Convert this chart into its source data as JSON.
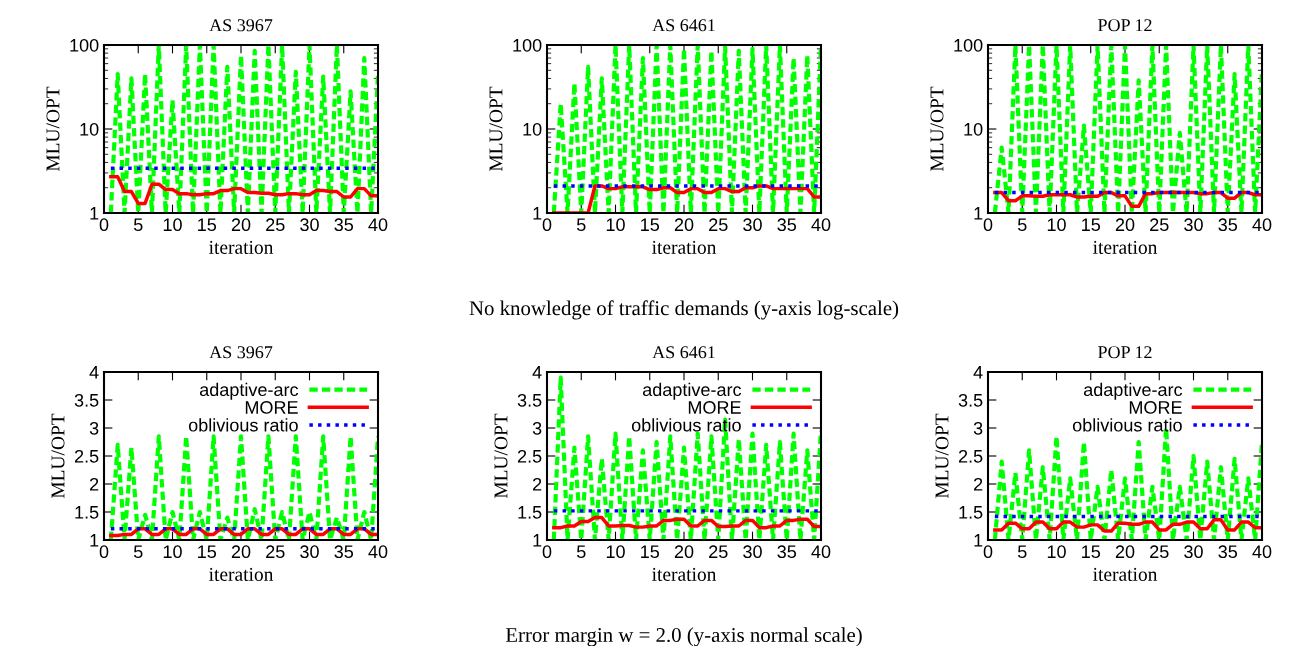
{
  "chart_data": [
    {
      "type": "line",
      "title": "AS 3967",
      "xlabel": "iteration",
      "ylabel": "MLU/OPT",
      "log": "y",
      "xlim": [
        0,
        40
      ],
      "xticks": [
        0,
        5,
        10,
        15,
        20,
        25,
        30,
        35,
        40
      ],
      "ylim": [
        1,
        100
      ],
      "yticks": [
        1,
        10,
        100
      ],
      "grid": false,
      "legend": false,
      "x": [
        1,
        2,
        3,
        4,
        5,
        6,
        7,
        8,
        9,
        10,
        11,
        12,
        13,
        14,
        15,
        16,
        17,
        18,
        19,
        20,
        21,
        22,
        23,
        24,
        25,
        26,
        27,
        28,
        29,
        30,
        31,
        32,
        33,
        34,
        35,
        36,
        37,
        38,
        39,
        40
      ],
      "series": [
        {
          "color": "#00ff00",
          "line_style": "dashed",
          "values": [
            1,
            45,
            1,
            40,
            1,
            45,
            1,
            100,
            1,
            22,
            1,
            100,
            1,
            100,
            1,
            100,
            1,
            55,
            1,
            75,
            1,
            85,
            1,
            100,
            1,
            100,
            1,
            48,
            1,
            100,
            1,
            42,
            1,
            100,
            1,
            28,
            1,
            70,
            1,
            45
          ]
        },
        {
          "color": "#ff0000",
          "line_style": "solid",
          "values": [
            2.7,
            2.7,
            1.8,
            1.8,
            1.3,
            1.3,
            2.2,
            2.2,
            1.9,
            1.9,
            1.7,
            1.7,
            1.65,
            1.65,
            1.7,
            1.7,
            1.85,
            1.85,
            1.95,
            1.95,
            1.75,
            1.75,
            1.72,
            1.72,
            1.65,
            1.65,
            1.7,
            1.7,
            1.65,
            1.65,
            1.85,
            1.85,
            1.8,
            1.8,
            1.55,
            1.55,
            1.95,
            1.95,
            1.6,
            1.6
          ]
        },
        {
          "color": "#0000ff",
          "line_style": "dotted",
          "values": [
            3.4,
            3.4,
            3.4,
            3.4,
            3.4,
            3.4,
            3.4,
            3.4,
            3.4,
            3.4,
            3.4,
            3.4,
            3.4,
            3.4,
            3.4,
            3.4,
            3.4,
            3.4,
            3.4,
            3.4,
            3.4,
            3.4,
            3.4,
            3.4,
            3.4,
            3.4,
            3.4,
            3.4,
            3.4,
            3.4,
            3.4,
            3.4,
            3.4,
            3.4,
            3.4,
            3.4,
            3.4,
            3.4,
            3.4,
            3.4
          ]
        }
      ]
    },
    {
      "type": "line",
      "title": "AS 6461",
      "xlabel": "iteration",
      "ylabel": "MLU/OPT",
      "log": "y",
      "xlim": [
        0,
        40
      ],
      "xticks": [
        0,
        5,
        10,
        15,
        20,
        25,
        30,
        35,
        40
      ],
      "ylim": [
        1,
        100
      ],
      "yticks": [
        1,
        10,
        100
      ],
      "grid": false,
      "legend": false,
      "annotations": [
        "No knowledge of traffic demands (y-axis log-scale)"
      ],
      "x": [
        1,
        2,
        3,
        4,
        5,
        6,
        7,
        8,
        9,
        10,
        11,
        12,
        13,
        14,
        15,
        16,
        17,
        18,
        19,
        20,
        21,
        22,
        23,
        24,
        25,
        26,
        27,
        28,
        29,
        30,
        31,
        32,
        33,
        34,
        35,
        36,
        37,
        38,
        39,
        40
      ],
      "series": [
        {
          "color": "#00ff00",
          "line_style": "dashed",
          "values": [
            1,
            20,
            1,
            35,
            1,
            55,
            1,
            40,
            1,
            100,
            1,
            100,
            1,
            70,
            1,
            100,
            1,
            100,
            1,
            90,
            1,
            100,
            1,
            85,
            1,
            95,
            1,
            85,
            1,
            90,
            1,
            100,
            1,
            100,
            1,
            70,
            1,
            75,
            1,
            100
          ]
        },
        {
          "color": "#ff0000",
          "line_style": "solid",
          "values": [
            1,
            1,
            1,
            1,
            1,
            1,
            2.1,
            2.1,
            1.95,
            1.95,
            2.05,
            2.05,
            2.05,
            2.05,
            1.9,
            1.9,
            2.0,
            2.0,
            1.75,
            1.75,
            1.95,
            1.95,
            1.75,
            1.75,
            1.95,
            1.95,
            1.8,
            1.8,
            2.0,
            2.0,
            2.1,
            2.1,
            1.95,
            1.95,
            1.95,
            1.95,
            1.95,
            1.95,
            1.55,
            1.55
          ]
        },
        {
          "color": "#0000ff",
          "line_style": "dotted",
          "values": [
            2.1,
            2.1,
            2.1,
            2.1,
            2.1,
            2.1,
            2.1,
            2.1,
            2.1,
            2.1,
            2.1,
            2.1,
            2.1,
            2.1,
            2.1,
            2.1,
            2.1,
            2.1,
            2.1,
            2.1,
            2.1,
            2.1,
            2.1,
            2.1,
            2.1,
            2.1,
            2.1,
            2.1,
            2.1,
            2.1,
            2.1,
            2.1,
            2.1,
            2.1,
            2.1,
            2.1,
            2.1,
            2.1,
            2.1,
            2.1
          ]
        }
      ]
    },
    {
      "type": "line",
      "title": "POP 12",
      "xlabel": "iteration",
      "ylabel": "MLU/OPT",
      "log": "y",
      "xlim": [
        0,
        40
      ],
      "xticks": [
        0,
        5,
        10,
        15,
        20,
        25,
        30,
        35,
        40
      ],
      "ylim": [
        1,
        100
      ],
      "yticks": [
        1,
        10,
        100
      ],
      "grid": false,
      "legend": false,
      "x": [
        1,
        2,
        3,
        4,
        5,
        6,
        7,
        8,
        9,
        10,
        11,
        12,
        13,
        14,
        15,
        16,
        17,
        18,
        19,
        20,
        21,
        22,
        23,
        24,
        25,
        26,
        27,
        28,
        29,
        30,
        31,
        32,
        33,
        34,
        35,
        36,
        37,
        38,
        39,
        40
      ],
      "series": [
        {
          "color": "#00ff00",
          "line_style": "dashed",
          "values": [
            1,
            6,
            1,
            100,
            1,
            100,
            1,
            100,
            1,
            100,
            1,
            100,
            1,
            11,
            1,
            100,
            1,
            100,
            1,
            100,
            1,
            38,
            1,
            100,
            1,
            100,
            1,
            9,
            1,
            100,
            1,
            100,
            1,
            100,
            1,
            45,
            1,
            100,
            1,
            50
          ]
        },
        {
          "color": "#ff0000",
          "line_style": "solid",
          "values": [
            1.75,
            1.75,
            1.4,
            1.4,
            1.6,
            1.6,
            1.58,
            1.58,
            1.65,
            1.65,
            1.65,
            1.65,
            1.55,
            1.55,
            1.58,
            1.58,
            1.75,
            1.75,
            1.6,
            1.6,
            1.2,
            1.2,
            1.7,
            1.7,
            1.75,
            1.75,
            1.75,
            1.75,
            1.75,
            1.75,
            1.7,
            1.7,
            1.75,
            1.75,
            1.5,
            1.5,
            1.75,
            1.75,
            1.65,
            1.65
          ]
        },
        {
          "color": "#0000ff",
          "line_style": "dotted",
          "values": [
            1.75,
            1.75,
            1.75,
            1.75,
            1.75,
            1.75,
            1.75,
            1.75,
            1.75,
            1.75,
            1.75,
            1.75,
            1.75,
            1.75,
            1.75,
            1.75,
            1.75,
            1.75,
            1.75,
            1.75,
            1.75,
            1.75,
            1.75,
            1.75,
            1.75,
            1.75,
            1.75,
            1.75,
            1.75,
            1.75,
            1.75,
            1.75,
            1.75,
            1.75,
            1.75,
            1.75,
            1.75,
            1.75,
            1.75,
            1.75
          ]
        }
      ]
    },
    {
      "type": "line",
      "title": "AS 3967",
      "xlabel": "iteration",
      "ylabel": "MLU/OPT",
      "xlim": [
        0,
        40
      ],
      "xticks": [
        0,
        5,
        10,
        15,
        20,
        25,
        30,
        35,
        40
      ],
      "ylim": [
        1,
        4
      ],
      "yticks": [
        1,
        1.5,
        2,
        2.5,
        3,
        3.5,
        4
      ],
      "grid": false,
      "legend": "top right",
      "x": [
        1,
        2,
        3,
        4,
        5,
        6,
        7,
        8,
        9,
        10,
        11,
        12,
        13,
        14,
        15,
        16,
        17,
        18,
        19,
        20,
        21,
        22,
        23,
        24,
        25,
        26,
        27,
        28,
        29,
        30,
        31,
        32,
        33,
        34,
        35,
        36,
        37,
        38,
        39,
        40
      ],
      "series": [
        {
          "name": "adaptive-arc",
          "color": "#00ff00",
          "line_style": "dashed",
          "values": [
            1,
            2.7,
            1,
            2.65,
            1,
            1.45,
            1,
            2.85,
            1,
            1.5,
            1,
            2.85,
            1,
            1.5,
            1,
            2.85,
            1,
            1.4,
            1,
            2.85,
            1,
            1.55,
            1,
            2.85,
            1,
            1.5,
            1,
            2.85,
            1,
            1.5,
            1,
            2.85,
            1,
            1.4,
            1,
            2.85,
            1,
            1.5,
            1,
            2.85
          ]
        },
        {
          "name": "MORE",
          "color": "#ff0000",
          "line_style": "solid",
          "values": [
            1.08,
            1.08,
            1.1,
            1.1,
            1.2,
            1.2,
            1.1,
            1.1,
            1.2,
            1.2,
            1.1,
            1.1,
            1.2,
            1.2,
            1.1,
            1.1,
            1.2,
            1.2,
            1.1,
            1.1,
            1.2,
            1.2,
            1.1,
            1.1,
            1.2,
            1.2,
            1.1,
            1.1,
            1.2,
            1.2,
            1.1,
            1.1,
            1.2,
            1.2,
            1.1,
            1.1,
            1.2,
            1.2,
            1.1,
            1.1
          ]
        },
        {
          "name": "oblivious ratio",
          "color": "#0000ff",
          "line_style": "dotted",
          "values": [
            1.2,
            1.2,
            1.2,
            1.2,
            1.2,
            1.2,
            1.2,
            1.2,
            1.2,
            1.2,
            1.2,
            1.2,
            1.2,
            1.2,
            1.2,
            1.2,
            1.2,
            1.2,
            1.2,
            1.2,
            1.2,
            1.2,
            1.2,
            1.2,
            1.2,
            1.2,
            1.2,
            1.2,
            1.2,
            1.2,
            1.2,
            1.2,
            1.2,
            1.2,
            1.2,
            1.2,
            1.2,
            1.2,
            1.2,
            1.2
          ]
        }
      ]
    },
    {
      "type": "line",
      "title": "AS 6461",
      "xlabel": "iteration",
      "ylabel": "MLU/OPT",
      "xlim": [
        0,
        40
      ],
      "xticks": [
        0,
        5,
        10,
        15,
        20,
        25,
        30,
        35,
        40
      ],
      "ylim": [
        1,
        4
      ],
      "yticks": [
        1,
        1.5,
        2,
        2.5,
        3,
        3.5,
        4
      ],
      "grid": false,
      "legend": "top right",
      "annotations": [
        "Error margin w = 2.0 (y-axis normal scale)"
      ],
      "x": [
        1,
        2,
        3,
        4,
        5,
        6,
        7,
        8,
        9,
        10,
        11,
        12,
        13,
        14,
        15,
        16,
        17,
        18,
        19,
        20,
        21,
        22,
        23,
        24,
        25,
        26,
        27,
        28,
        29,
        30,
        31,
        32,
        33,
        34,
        35,
        36,
        37,
        38,
        39,
        40
      ],
      "series": [
        {
          "name": "adaptive-arc",
          "color": "#00ff00",
          "line_style": "dashed",
          "values": [
            1,
            3.9,
            1,
            2.65,
            1,
            2.85,
            1,
            2.45,
            1,
            2.9,
            1,
            2.85,
            1,
            2.6,
            1,
            2.75,
            1,
            2.85,
            1,
            2.65,
            1,
            2.9,
            1,
            2.85,
            1,
            3.15,
            1,
            2.8,
            1,
            2.9,
            1,
            2.7,
            1,
            2.75,
            1,
            2.9,
            1,
            2.6,
            1,
            2.95
          ]
        },
        {
          "name": "MORE",
          "color": "#ff0000",
          "line_style": "solid",
          "values": [
            1.22,
            1.22,
            1.25,
            1.25,
            1.33,
            1.33,
            1.4,
            1.4,
            1.25,
            1.25,
            1.26,
            1.26,
            1.23,
            1.23,
            1.25,
            1.25,
            1.35,
            1.35,
            1.37,
            1.37,
            1.25,
            1.25,
            1.35,
            1.35,
            1.24,
            1.24,
            1.25,
            1.25,
            1.35,
            1.35,
            1.22,
            1.22,
            1.25,
            1.25,
            1.35,
            1.35,
            1.37,
            1.37,
            1.24,
            1.24
          ]
        },
        {
          "name": "oblivious ratio",
          "color": "#0000ff",
          "line_style": "dotted",
          "values": [
            1.52,
            1.52,
            1.52,
            1.52,
            1.52,
            1.52,
            1.52,
            1.52,
            1.52,
            1.52,
            1.52,
            1.52,
            1.52,
            1.52,
            1.52,
            1.52,
            1.52,
            1.52,
            1.52,
            1.52,
            1.52,
            1.52,
            1.52,
            1.52,
            1.52,
            1.52,
            1.52,
            1.52,
            1.52,
            1.52,
            1.52,
            1.52,
            1.52,
            1.52,
            1.52,
            1.52,
            1.52,
            1.52,
            1.52,
            1.52
          ]
        }
      ]
    },
    {
      "type": "line",
      "title": "POP 12",
      "xlabel": "iteration",
      "ylabel": "MLU/OPT",
      "xlim": [
        0,
        40
      ],
      "xticks": [
        0,
        5,
        10,
        15,
        20,
        25,
        30,
        35,
        40
      ],
      "ylim": [
        1,
        4
      ],
      "yticks": [
        1,
        1.5,
        2,
        2.5,
        3,
        3.5,
        4
      ],
      "grid": false,
      "legend": "top right",
      "x": [
        1,
        2,
        3,
        4,
        5,
        6,
        7,
        8,
        9,
        10,
        11,
        12,
        13,
        14,
        15,
        16,
        17,
        18,
        19,
        20,
        21,
        22,
        23,
        24,
        25,
        26,
        27,
        28,
        29,
        30,
        31,
        32,
        33,
        34,
        35,
        36,
        37,
        38,
        39,
        40
      ],
      "series": [
        {
          "name": "adaptive-arc",
          "color": "#00ff00",
          "line_style": "dashed",
          "values": [
            1,
            2.4,
            1,
            2.2,
            1,
            2.6,
            1,
            2.3,
            1,
            2.85,
            1,
            2.1,
            1,
            2.75,
            1,
            1.95,
            1,
            2.25,
            1,
            2.1,
            1,
            2.75,
            1,
            1.95,
            1,
            3.0,
            1,
            1.95,
            1,
            2.5,
            1,
            2.4,
            1,
            2.3,
            1,
            2.45,
            1,
            2.1,
            1,
            2.75
          ]
        },
        {
          "name": "MORE",
          "color": "#ff0000",
          "line_style": "solid",
          "values": [
            1.18,
            1.18,
            1.3,
            1.3,
            1.2,
            1.2,
            1.32,
            1.32,
            1.2,
            1.2,
            1.32,
            1.32,
            1.23,
            1.23,
            1.27,
            1.27,
            1.16,
            1.16,
            1.3,
            1.3,
            1.28,
            1.28,
            1.32,
            1.32,
            1.18,
            1.18,
            1.28,
            1.28,
            1.32,
            1.32,
            1.2,
            1.2,
            1.36,
            1.36,
            1.18,
            1.18,
            1.32,
            1.32,
            1.22,
            1.22
          ]
        },
        {
          "name": "oblivious ratio",
          "color": "#0000ff",
          "line_style": "dotted",
          "values": [
            1.42,
            1.42,
            1.42,
            1.42,
            1.42,
            1.42,
            1.42,
            1.42,
            1.42,
            1.42,
            1.42,
            1.42,
            1.42,
            1.42,
            1.42,
            1.42,
            1.42,
            1.42,
            1.42,
            1.42,
            1.42,
            1.42,
            1.42,
            1.42,
            1.42,
            1.42,
            1.42,
            1.42,
            1.42,
            1.42,
            1.42,
            1.42,
            1.42,
            1.42,
            1.42,
            1.42,
            1.42,
            1.42,
            1.42,
            1.42
          ]
        }
      ]
    }
  ]
}
